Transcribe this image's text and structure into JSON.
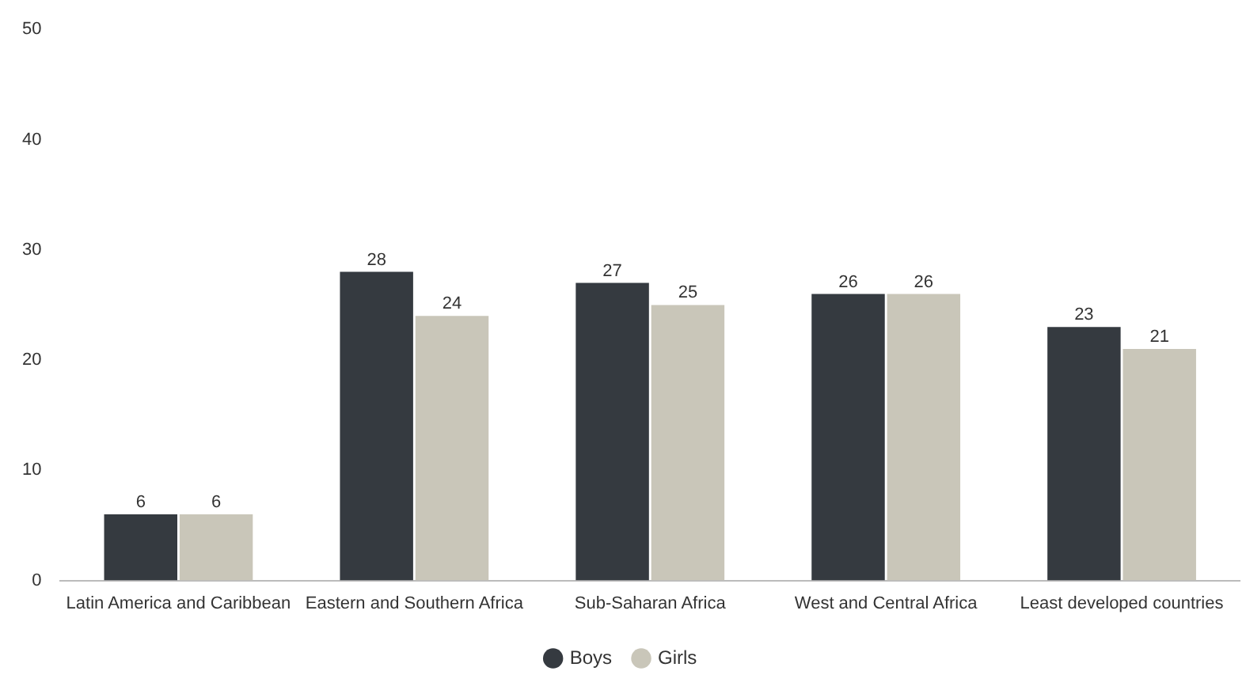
{
  "chart_data": {
    "type": "bar",
    "categories": [
      "Latin America and Caribbean",
      "Eastern and Southern Africa",
      "Sub-Saharan Africa",
      "West and Central Africa",
      "Least developed countries"
    ],
    "series": [
      {
        "name": "Boys",
        "color": "#353a40",
        "values": [
          6,
          28,
          27,
          26,
          23
        ]
      },
      {
        "name": "Girls",
        "color": "#c9c6b9",
        "values": [
          6,
          24,
          25,
          26,
          21
        ]
      }
    ],
    "ylim": [
      0,
      50
    ],
    "yticks": [
      0,
      10,
      20,
      30,
      40,
      50
    ],
    "grid": false,
    "legend": "bottom",
    "data_labels": true
  }
}
